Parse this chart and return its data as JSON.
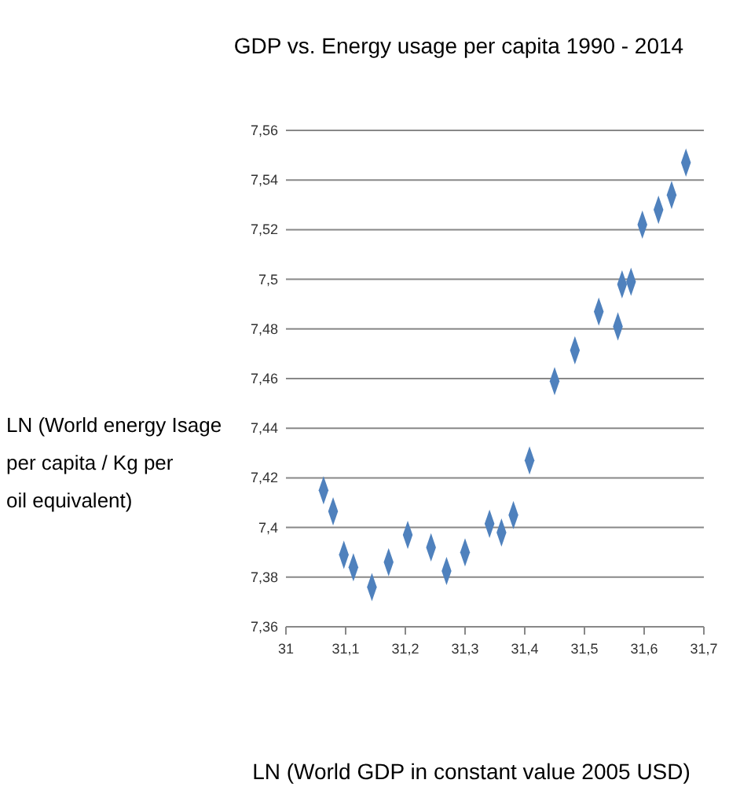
{
  "chart_data": {
    "type": "scatter",
    "title": "GDP vs. Energy usage per capita 1990 - 2014",
    "xlabel": "LN (World GDP in constant value 2005 USD)",
    "ylabel": "LN (World energy Isage per capita / Kg per oil equivalent)",
    "x": [
      31.063,
      31.079,
      31.097,
      31.113,
      31.144,
      31.172,
      31.204,
      31.243,
      31.269,
      31.3,
      31.341,
      31.361,
      31.381,
      31.408,
      31.45,
      31.484,
      31.524,
      31.556,
      31.563,
      31.578,
      31.597,
      31.624,
      31.646,
      31.67
    ],
    "series": [
      {
        "color": "#4f81bd",
        "values": [
          7.415,
          7.4065,
          7.389,
          7.384,
          7.376,
          7.386,
          7.397,
          7.392,
          7.3825,
          7.39,
          7.4015,
          7.398,
          7.405,
          7.427,
          7.459,
          7.4714,
          7.487,
          7.481,
          7.498,
          7.499,
          7.522,
          7.528,
          7.534,
          7.547
        ]
      }
    ],
    "xlim": [
      31,
      31.7
    ],
    "xticks": [
      31,
      {
        "value": 31.1,
        "label": "31,1"
      },
      {
        "value": 31.2,
        "label": "31,2"
      },
      {
        "value": 31.3,
        "label": "31,3"
      },
      {
        "value": 31.4,
        "label": "31,4"
      },
      {
        "value": 31.5,
        "label": "31,5"
      },
      {
        "value": 31.6,
        "label": "31,6"
      },
      {
        "value": 31.7,
        "label": "31,7"
      }
    ],
    "ylim": [
      7.36,
      7.56
    ],
    "yticks": [
      {
        "value": 7.36,
        "label": "7,36"
      },
      {
        "value": 7.38,
        "label": "7,38"
      },
      {
        "value": 7.4,
        "label": "7,4"
      },
      {
        "value": 7.42,
        "label": "7,42"
      },
      {
        "value": 7.44,
        "label": "7,44"
      },
      {
        "value": 7.46,
        "label": "7,46"
      },
      {
        "value": 7.48,
        "label": "7,48"
      },
      {
        "value": 7.5,
        "label": "7,5"
      },
      {
        "value": 7.52,
        "label": "7,52"
      },
      {
        "value": 7.54,
        "label": "7,54"
      },
      {
        "value": 7.56,
        "label": "7,56"
      }
    ],
    "grid": "y",
    "marker": "diamond"
  }
}
